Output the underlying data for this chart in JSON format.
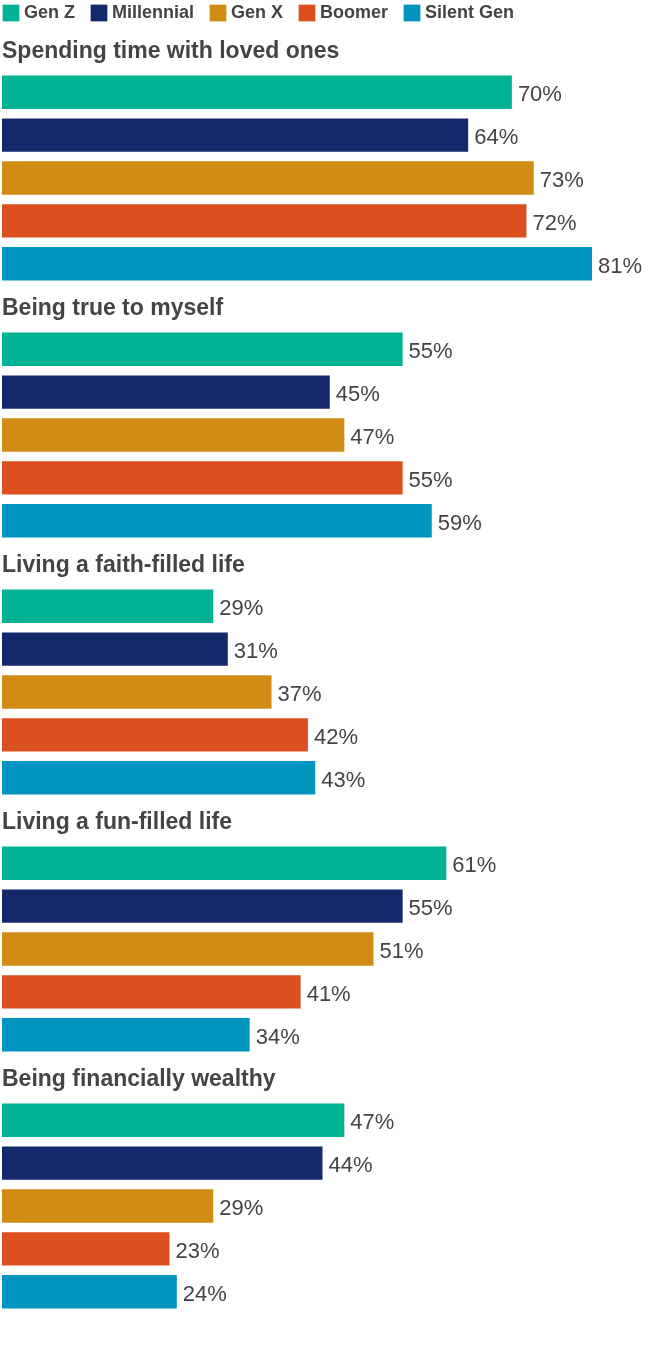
{
  "chart_data": {
    "type": "bar",
    "orientation": "horizontal",
    "legend": "top",
    "categories": [
      "Spending time with loved ones",
      "Being true to myself",
      "Living a faith-filled life",
      "Living a fun-filled life",
      "Being financially wealthy"
    ],
    "series": [
      {
        "name": "Gen Z",
        "color": "#00b294",
        "values": [
          70,
          55,
          29,
          61,
          47
        ],
        "value_labels": [
          "70%",
          "55%",
          "29%",
          "61%",
          "47%"
        ]
      },
      {
        "name": "Millennial",
        "color": "#13296b",
        "values": [
          64,
          45,
          31,
          55,
          44
        ],
        "value_labels": [
          "64%",
          "45%",
          "31%",
          "55%",
          "44%"
        ]
      },
      {
        "name": "Gen X",
        "color": "#d08c15",
        "values": [
          73,
          47,
          37,
          51,
          29
        ],
        "value_labels": [
          "73%",
          "47%",
          "37%",
          "51%",
          "29%"
        ]
      },
      {
        "name": "Boomer",
        "color": "#dc4f1f",
        "values": [
          72,
          55,
          42,
          41,
          23
        ],
        "value_labels": [
          "72%",
          "55%",
          "42%",
          "41%",
          "23%"
        ]
      },
      {
        "name": "Silent Gen",
        "color": "#0095c0",
        "values": [
          81,
          59,
          43,
          34,
          24
        ],
        "value_labels": [
          "81%",
          "59%",
          "43%",
          "34%",
          "24%"
        ]
      }
    ]
  }
}
